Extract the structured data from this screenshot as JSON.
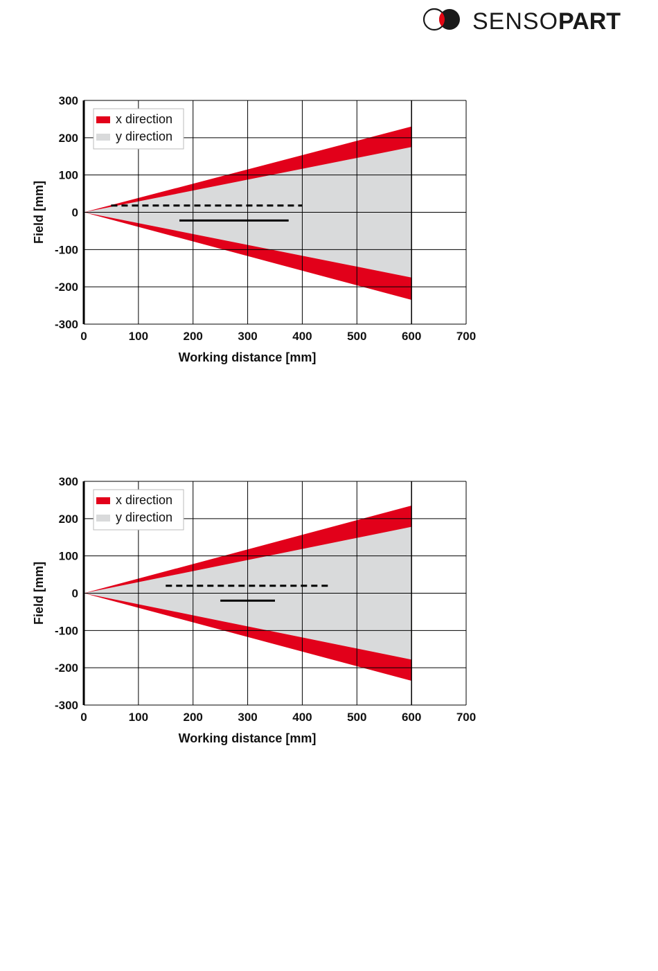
{
  "brand": {
    "name_light": "SENSO",
    "name_bold": "PART",
    "colors": {
      "red": "#e30613",
      "black": "#1a1a1a"
    }
  },
  "colors": {
    "x_direction": "#e2001a",
    "y_direction": "#d9dadb",
    "grid": "#000000"
  },
  "chart_data": [
    {
      "type": "area",
      "xlabel": "Working distance [mm]",
      "ylabel": "Field [mm]",
      "xlim": [
        0,
        700
      ],
      "ylim": [
        -300,
        300
      ],
      "x_ticks": [
        "0",
        "100",
        "200",
        "300",
        "400",
        "500",
        "600",
        "700"
      ],
      "y_ticks": [
        "300",
        "200",
        "100",
        "0",
        "-100",
        "-200",
        "-300"
      ],
      "grid": true,
      "legend_position": "top-left",
      "series": [
        {
          "name": "x direction",
          "x": [
            0,
            600
          ],
          "upper": [
            0,
            230
          ],
          "lower": [
            0,
            -235
          ]
        },
        {
          "name": "y direction",
          "x": [
            0,
            600
          ],
          "upper": [
            0,
            175
          ],
          "lower": [
            0,
            -175
          ]
        }
      ],
      "annotations": [
        {
          "style": "dashed",
          "x": [
            50,
            400
          ],
          "y": 18
        },
        {
          "style": "solid",
          "x": [
            175,
            375
          ],
          "y": -22
        }
      ]
    },
    {
      "type": "area",
      "xlabel": "Working distance [mm]",
      "ylabel": "Field [mm]",
      "xlim": [
        0,
        700
      ],
      "ylim": [
        -300,
        300
      ],
      "x_ticks": [
        "0",
        "100",
        "200",
        "300",
        "400",
        "500",
        "600",
        "700"
      ],
      "y_ticks": [
        "300",
        "200",
        "100",
        "0",
        "-100",
        "-200",
        "-300"
      ],
      "grid": true,
      "legend_position": "top-left",
      "series": [
        {
          "name": "x direction",
          "x": [
            0,
            600
          ],
          "upper": [
            0,
            235
          ],
          "lower": [
            0,
            -235
          ]
        },
        {
          "name": "y direction",
          "x": [
            0,
            600
          ],
          "upper": [
            0,
            178
          ],
          "lower": [
            0,
            -178
          ]
        }
      ],
      "annotations": [
        {
          "style": "dashed",
          "x": [
            150,
            450
          ],
          "y": 20
        },
        {
          "style": "solid",
          "x": [
            250,
            350
          ],
          "y": -20
        }
      ]
    }
  ]
}
